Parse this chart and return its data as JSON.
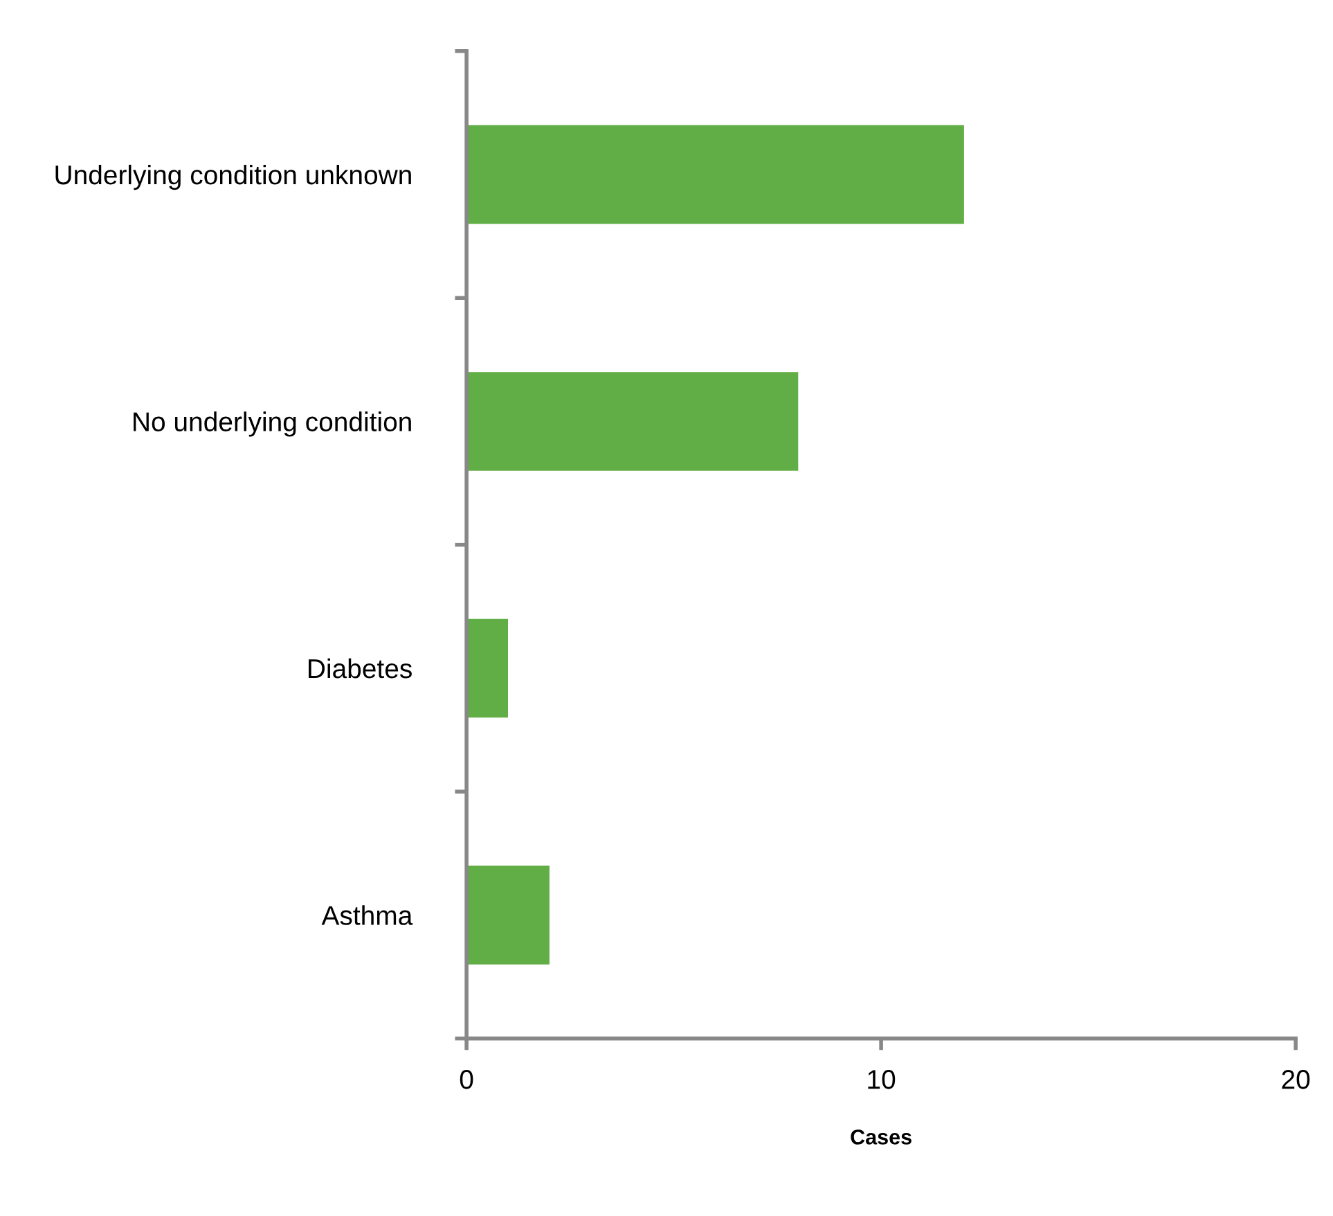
{
  "chart_data": {
    "type": "bar",
    "orientation": "horizontal",
    "xlabel": "Cases",
    "categories": [
      "Underlying condition unknown",
      "No underlying condition",
      "Diabetes",
      "Asthma"
    ],
    "values": [
      12,
      8,
      1,
      2
    ],
    "color": "#62ae46",
    "xlim": [
      0,
      20
    ],
    "xticks": [
      0,
      10,
      20
    ],
    "grid": false,
    "legend": false
  }
}
